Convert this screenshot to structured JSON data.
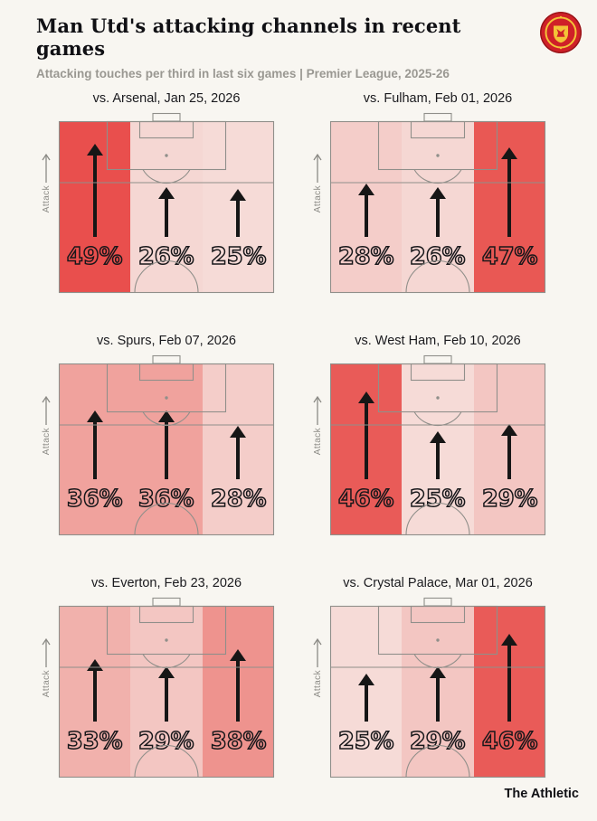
{
  "header": {
    "title": "Man Utd's attacking channels in recent games",
    "subtitle": "Attacking touches per third in last six games | Premier League, 2025-26"
  },
  "labels": {
    "attack_direction": "Attack"
  },
  "branding": {
    "footer_wordmark": "The Athletic",
    "crest": "man-utd-crest"
  },
  "style": {
    "background": "#f8f6f1",
    "pitch_line_color": "#908f8a",
    "arrow_color": "#161616",
    "accent_red": "#e94f4d"
  },
  "chart_data": {
    "type": "bar",
    "title": "Man Utd's attacking channels in recent games",
    "subtitle": "Attacking touches per third in last six games | Premier League, 2025-26",
    "layout": "2x3 small multiples; each is a half football pitch, attack pointing up, split into three vertical channels shaded by share of attacking touches",
    "categories": [
      "Left channel",
      "Middle channel",
      "Right channel"
    ],
    "unit": "%",
    "panels": [
      {
        "title": "vs. Arsenal, Jan 25, 2026",
        "values": [
          {
            "pct": 49,
            "label": "49%",
            "color": "#e94f4d"
          },
          {
            "pct": 26,
            "label": "26%",
            "color": "#f5d7d3"
          },
          {
            "pct": 25,
            "label": "25%",
            "color": "#f6dbd7"
          }
        ]
      },
      {
        "title": "vs. Fulham, Feb 01, 2026",
        "values": [
          {
            "pct": 28,
            "label": "28%",
            "color": "#f4cdc9"
          },
          {
            "pct": 26,
            "label": "26%",
            "color": "#f5d7d3"
          },
          {
            "pct": 47,
            "label": "47%",
            "color": "#e95854"
          }
        ]
      },
      {
        "title": "vs. Spurs, Feb 07, 2026",
        "values": [
          {
            "pct": 36,
            "label": "36%",
            "color": "#f0a29d"
          },
          {
            "pct": 36,
            "label": "36%",
            "color": "#f0a29d"
          },
          {
            "pct": 28,
            "label": "28%",
            "color": "#f4cdc9"
          }
        ]
      },
      {
        "title": "vs. West Ham, Feb 10, 2026",
        "values": [
          {
            "pct": 46,
            "label": "46%",
            "color": "#e95b58"
          },
          {
            "pct": 25,
            "label": "25%",
            "color": "#f6dbd7"
          },
          {
            "pct": 29,
            "label": "29%",
            "color": "#f3c6c2"
          }
        ]
      },
      {
        "title": "vs. Everton, Feb 23, 2026",
        "values": [
          {
            "pct": 33,
            "label": "33%",
            "color": "#f1b1ac"
          },
          {
            "pct": 29,
            "label": "29%",
            "color": "#f3c6c2"
          },
          {
            "pct": 38,
            "label": "38%",
            "color": "#ee938e"
          }
        ]
      },
      {
        "title": "vs. Crystal Palace, Mar 01, 2026",
        "values": [
          {
            "pct": 25,
            "label": "25%",
            "color": "#f6dbd7"
          },
          {
            "pct": 29,
            "label": "29%",
            "color": "#f3c6c2"
          },
          {
            "pct": 46,
            "label": "46%",
            "color": "#e95b58"
          }
        ]
      }
    ]
  }
}
